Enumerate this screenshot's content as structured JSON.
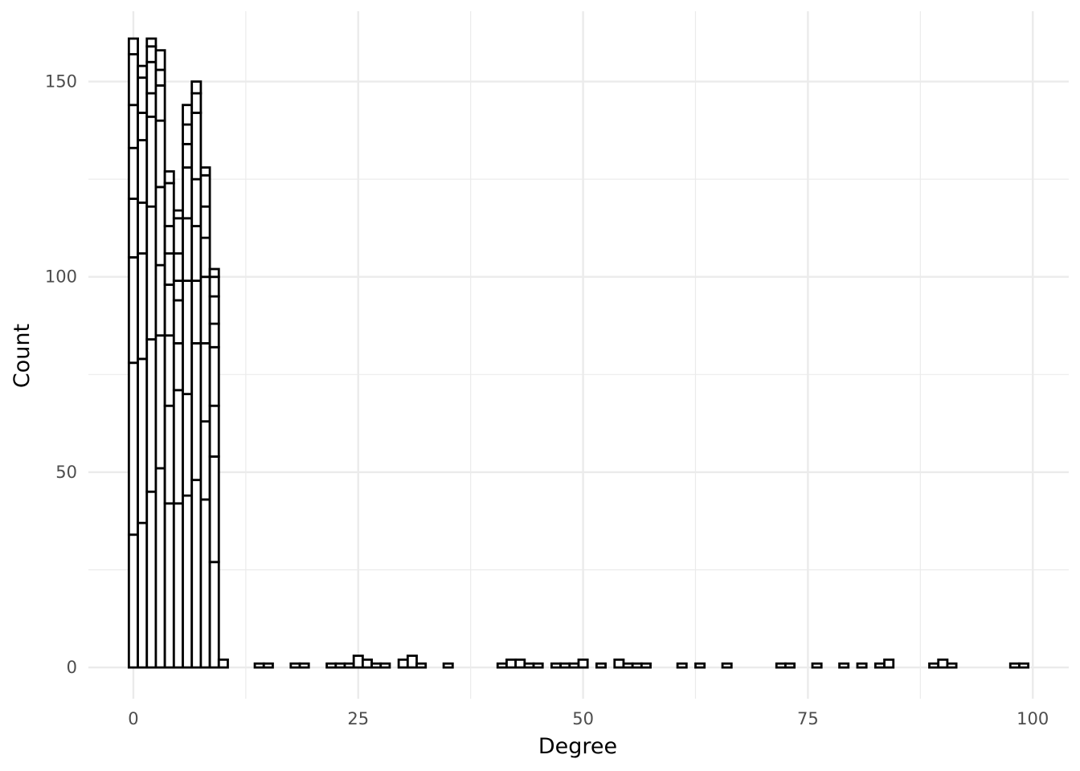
{
  "chart_data": {
    "type": "bar",
    "subtype": "stacked-histogram",
    "title": "",
    "xlabel": "Degree",
    "ylabel": "Count",
    "xlim": [
      -5,
      104
    ],
    "ylim": [
      -8,
      168
    ],
    "x_ticks": [
      0,
      25,
      50,
      75,
      100
    ],
    "y_ticks": [
      0,
      50,
      100,
      150
    ],
    "grid": true,
    "legend": "none",
    "colors": {
      "bar_fill": "#ffffff",
      "bar_stroke": "#000000",
      "grid": "#ebebeb"
    },
    "bin_width": 1,
    "stacked_bins": [
      {
        "x": 0,
        "boundaries": [
          34,
          78,
          105,
          120,
          133,
          144,
          157,
          161
        ]
      },
      {
        "x": 1,
        "boundaries": [
          37,
          79,
          106,
          119,
          135,
          142,
          151,
          154
        ]
      },
      {
        "x": 2,
        "boundaries": [
          45,
          84,
          118,
          141,
          147,
          155,
          159,
          161
        ]
      },
      {
        "x": 3,
        "boundaries": [
          51,
          85,
          103,
          123,
          140,
          149,
          153,
          158
        ]
      },
      {
        "x": 4,
        "boundaries": [
          42,
          67,
          85,
          98,
          106,
          113,
          124,
          127
        ]
      },
      {
        "x": 5,
        "boundaries": [
          42,
          71,
          83,
          94,
          99,
          106,
          115,
          117
        ]
      },
      {
        "x": 6,
        "boundaries": [
          44,
          70,
          99,
          115,
          128,
          134,
          139,
          144
        ]
      },
      {
        "x": 7,
        "boundaries": [
          48,
          83,
          99,
          113,
          125,
          142,
          147,
          150
        ]
      },
      {
        "x": 8,
        "boundaries": [
          43,
          63,
          83,
          100,
          110,
          118,
          126,
          128
        ]
      },
      {
        "x": 9,
        "boundaries": [
          27,
          54,
          67,
          82,
          88,
          95,
          100,
          102
        ]
      },
      {
        "x": 10,
        "boundaries": [
          2
        ]
      }
    ],
    "sparse_bins": [
      {
        "x": 14,
        "count": 1
      },
      {
        "x": 15,
        "count": 1
      },
      {
        "x": 18,
        "count": 1
      },
      {
        "x": 19,
        "count": 1
      },
      {
        "x": 22,
        "count": 1
      },
      {
        "x": 23,
        "count": 1
      },
      {
        "x": 24,
        "count": 1
      },
      {
        "x": 25,
        "count": 3
      },
      {
        "x": 26,
        "count": 2
      },
      {
        "x": 27,
        "count": 1
      },
      {
        "x": 28,
        "count": 1
      },
      {
        "x": 30,
        "count": 2
      },
      {
        "x": 31,
        "count": 3
      },
      {
        "x": 32,
        "count": 1
      },
      {
        "x": 35,
        "count": 1
      },
      {
        "x": 41,
        "count": 1
      },
      {
        "x": 42,
        "count": 2
      },
      {
        "x": 43,
        "count": 2
      },
      {
        "x": 44,
        "count": 1
      },
      {
        "x": 45,
        "count": 1
      },
      {
        "x": 47,
        "count": 1
      },
      {
        "x": 48,
        "count": 1
      },
      {
        "x": 49,
        "count": 1
      },
      {
        "x": 50,
        "count": 2
      },
      {
        "x": 52,
        "count": 1
      },
      {
        "x": 54,
        "count": 2
      },
      {
        "x": 55,
        "count": 1
      },
      {
        "x": 56,
        "count": 1
      },
      {
        "x": 57,
        "count": 1
      },
      {
        "x": 61,
        "count": 1
      },
      {
        "x": 63,
        "count": 1
      },
      {
        "x": 66,
        "count": 1
      },
      {
        "x": 72,
        "count": 1
      },
      {
        "x": 73,
        "count": 1
      },
      {
        "x": 76,
        "count": 1
      },
      {
        "x": 79,
        "count": 1
      },
      {
        "x": 81,
        "count": 1
      },
      {
        "x": 83,
        "count": 1
      },
      {
        "x": 84,
        "count": 2
      },
      {
        "x": 89,
        "count": 1
      },
      {
        "x": 90,
        "count": 2
      },
      {
        "x": 91,
        "count": 1
      },
      {
        "x": 98,
        "count": 1
      },
      {
        "x": 99,
        "count": 1
      }
    ]
  }
}
